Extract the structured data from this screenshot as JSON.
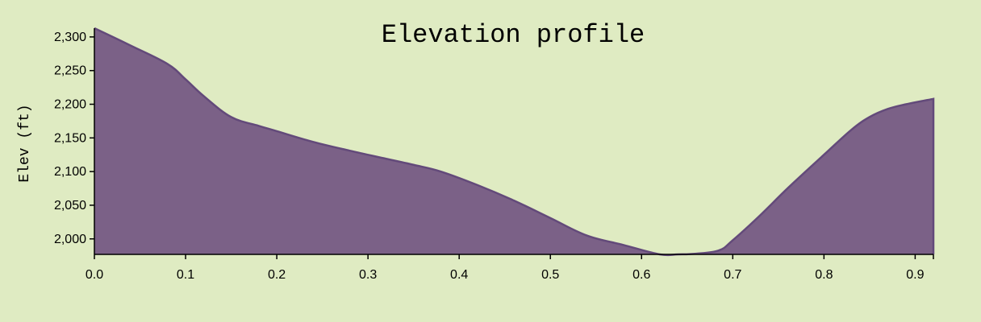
{
  "chart_data": {
    "type": "area",
    "title": "Elevation profile",
    "xlabel": "",
    "ylabel": "Elev (ft)",
    "xlim": [
      0.0,
      0.92
    ],
    "ylim": [
      1977,
      2313
    ],
    "x_ticks": [
      0.0,
      0.1,
      0.2,
      0.3,
      0.4,
      0.5,
      0.6,
      0.7,
      0.8,
      0.9
    ],
    "x_tick_labels": [
      "0.0",
      "0.1",
      "0.2",
      "0.3",
      "0.4",
      "0.5",
      "0.6",
      "0.7",
      "0.8",
      "0.9"
    ],
    "y_ticks": [
      2000,
      2050,
      2100,
      2150,
      2200,
      2250,
      2300
    ],
    "y_tick_labels": [
      "2,000",
      "2,050",
      "2,100",
      "2,150",
      "2,200",
      "2,250",
      "2,300"
    ],
    "grid": false,
    "legend": "none",
    "series": [
      {
        "x": [
          0.0,
          0.04,
          0.08,
          0.1,
          0.12,
          0.15,
          0.18,
          0.2,
          0.24,
          0.28,
          0.32,
          0.35,
          0.38,
          0.42,
          0.46,
          0.5,
          0.54,
          0.58,
          0.62,
          0.64,
          0.66,
          0.685,
          0.7,
          0.73,
          0.76,
          0.8,
          0.83,
          0.85,
          0.87,
          0.89,
          0.92
        ],
        "values": [
          2313,
          2287,
          2260,
          2237,
          2212,
          2181,
          2168,
          2160,
          2144,
          2131,
          2119,
          2110,
          2100,
          2080,
          2057,
          2031,
          2005,
          1991,
          1977,
          1977,
          1978,
          1983,
          1998,
          2035,
          2075,
          2125,
          2162,
          2181,
          2193,
          2200,
          2208
        ]
      }
    ],
    "colors": {
      "fill": "#7b6187",
      "stroke": "#634a7a",
      "background": "#dfebc2",
      "axis": "#000000"
    }
  }
}
